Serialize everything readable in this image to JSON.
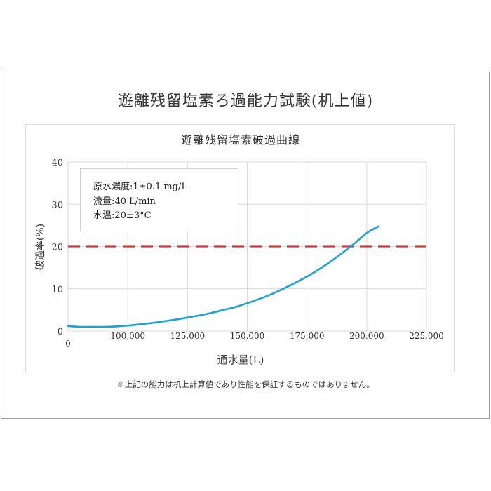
{
  "main_title": "遊離残留塩素ろ過能力試験(机上値)",
  "footnote": "※上記の能力は机上計算値であり性能を保証するものではありません。",
  "conditions": [
    "原水濃度:1±0.1 mg/L",
    "流量:40 L/min",
    "水温:20±3°C"
  ],
  "colors": {
    "curve": "#1fa0d2",
    "threshold": "#e03030",
    "grid": "#d9d9d9"
  },
  "chart_data": {
    "type": "line",
    "title": "遊離残留塩素破過曲線",
    "xlabel": "通水量(L)",
    "ylabel": "破過率(%)",
    "xlim": [
      75000,
      225000
    ],
    "ylim": [
      0,
      40
    ],
    "x_origin_label": "0",
    "x_ticks": [
      {
        "value": 100000,
        "label": "100,000"
      },
      {
        "value": 125000,
        "label": "125,000"
      },
      {
        "value": 150000,
        "label": "150,000"
      },
      {
        "value": 175000,
        "label": "175,000"
      },
      {
        "value": 200000,
        "label": "200,000"
      },
      {
        "value": 225000,
        "label": "225,000"
      }
    ],
    "y_ticks": [
      {
        "value": 0,
        "label": "0"
      },
      {
        "value": 10,
        "label": "10"
      },
      {
        "value": 20,
        "label": "20"
      },
      {
        "value": 30,
        "label": "30"
      },
      {
        "value": 40,
        "label": "40"
      }
    ],
    "grid": true,
    "threshold": {
      "y": 20,
      "style": "dashed"
    },
    "series": [
      {
        "x": [
          75000,
          80000,
          85000,
          90000,
          95000,
          100000,
          105000,
          110000,
          115000,
          120000,
          125000,
          130000,
          135000,
          140000,
          145000,
          150000,
          155000,
          160000,
          165000,
          170000,
          175000,
          180000,
          185000,
          190000,
          195000,
          200000,
          205000
        ],
        "y": [
          1.2,
          1.0,
          1.0,
          1.0,
          1.1,
          1.3,
          1.6,
          1.9,
          2.3,
          2.7,
          3.2,
          3.7,
          4.3,
          5.0,
          5.7,
          6.6,
          7.6,
          8.7,
          10.0,
          11.4,
          12.9,
          14.6,
          16.5,
          18.6,
          20.8,
          23.2,
          24.8
        ]
      }
    ]
  }
}
